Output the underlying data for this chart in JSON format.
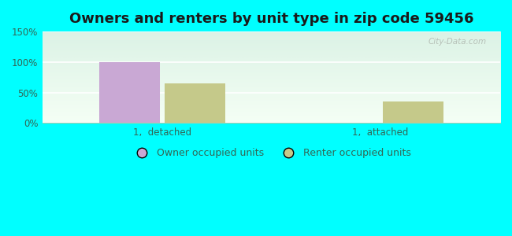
{
  "title": "Owners and renters by unit type in zip code 59456",
  "categories": [
    "1,  detached",
    "1,  attached"
  ],
  "owner_values": [
    100,
    0
  ],
  "renter_values": [
    65,
    35
  ],
  "owner_color": "#c9a8d4",
  "renter_color": "#c5c98a",
  "ylim": [
    0,
    150
  ],
  "yticks": [
    0,
    50,
    100,
    150
  ],
  "yticklabels": [
    "0%",
    "50%",
    "100%",
    "150%"
  ],
  "legend_owner": "Owner occupied units",
  "legend_renter": "Renter occupied units",
  "bg_color": "#00ffff",
  "watermark": "City-Data.com",
  "bar_width": 0.28,
  "title_fontsize": 13
}
